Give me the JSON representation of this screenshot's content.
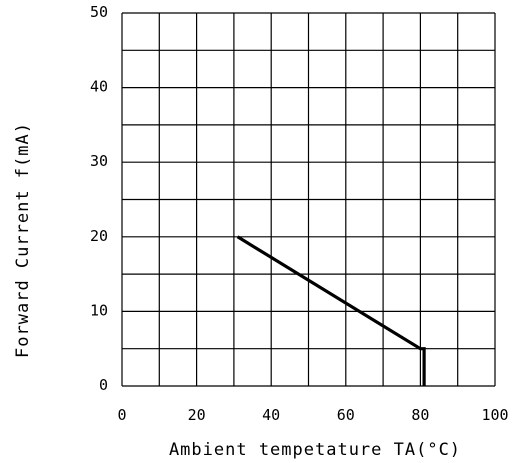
{
  "chart_data": {
    "type": "line",
    "xlabel": "Ambient tempetature TA(°C)",
    "ylabel": "Forward Current f(mA)",
    "xlim": [
      0,
      100
    ],
    "ylim": [
      0,
      50
    ],
    "x_ticks": [
      0,
      20,
      40,
      60,
      80,
      100
    ],
    "y_ticks": [
      0,
      10,
      20,
      30,
      40,
      50
    ],
    "x_tick_labels": [
      "0",
      "20",
      "40",
      "60",
      "80",
      "100"
    ],
    "y_tick_labels": [
      "0",
      "10",
      "20",
      "30",
      "40",
      "50"
    ],
    "grid": true,
    "series": [
      {
        "x": [
          31,
          80,
          81,
          81
        ],
        "y": [
          20,
          5,
          5,
          0
        ],
        "color": "#000000"
      }
    ]
  }
}
